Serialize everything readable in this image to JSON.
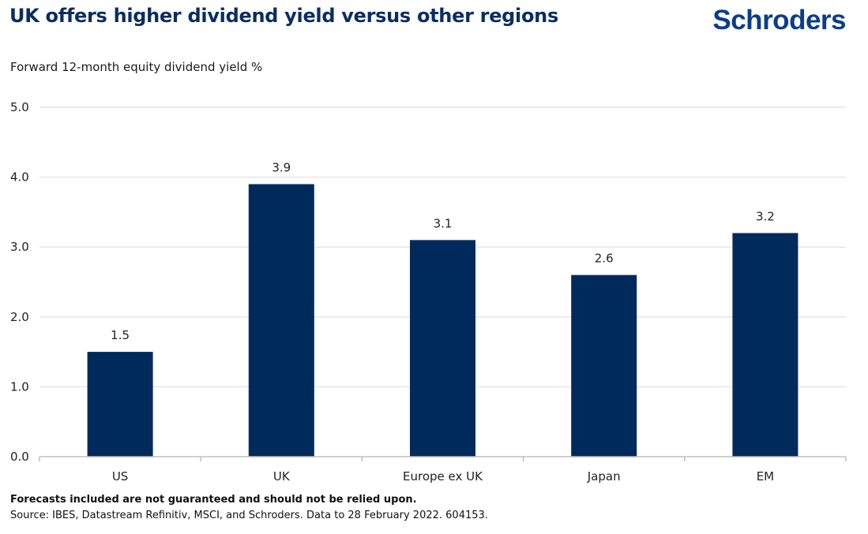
{
  "header": {
    "title": "UK offers higher dividend yield versus other regions",
    "logo": "Schroders"
  },
  "footer": {
    "disclaimer": "Forecasts included are not guaranteed and should not be relied upon.",
    "source": "Source: IBES, Datastream Refinitiv, MSCI, and Schroders. Data to 28 February 2022. 604153."
  },
  "colors": {
    "bar": "#002a5c",
    "title": "#0b2d63",
    "logo": "#0c3c8c",
    "grid": "#e6e6e6",
    "axis": "#bfbfbf"
  },
  "chart_data": {
    "type": "bar",
    "title": "UK offers higher dividend yield versus other regions",
    "subtitle": "Forward 12-month equity dividend yield %",
    "xlabel": "",
    "ylabel": "Forward 12-month equity dividend yield %",
    "categories": [
      "US",
      "UK",
      "Europe ex UK",
      "Japan",
      "EM"
    ],
    "values": [
      1.5,
      3.9,
      3.1,
      2.6,
      3.2
    ],
    "data_labels": [
      "1.5",
      "3.9",
      "3.1",
      "2.6",
      "3.2"
    ],
    "ylim": [
      0,
      5
    ],
    "yticks": [
      0,
      1,
      2,
      3,
      4,
      5
    ],
    "ytick_labels": [
      "0.0",
      "1.0",
      "2.0",
      "3.0",
      "4.0",
      "5.0"
    ],
    "grid": true,
    "legend": "none"
  }
}
